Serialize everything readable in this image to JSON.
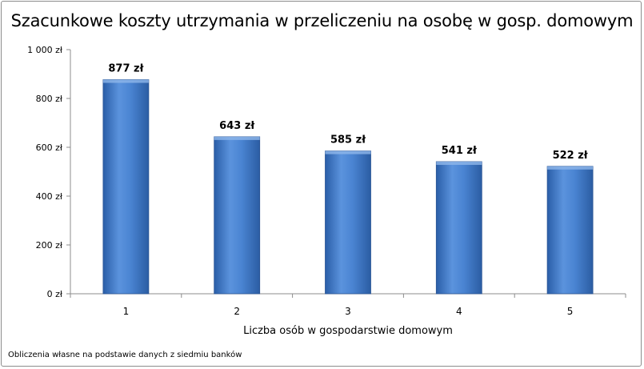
{
  "chart_data": {
    "type": "bar",
    "title": "Szacunkowe koszty utrzymania w przeliczeniu na osobę w gosp. domowym",
    "xlabel": "Liczba osób w gospodarstwie  domowym",
    "ylabel": "",
    "categories": [
      "1",
      "2",
      "3",
      "4",
      "5"
    ],
    "values": [
      877,
      643,
      585,
      541,
      522
    ],
    "data_labels": [
      "877 zł",
      "643 zł",
      "585 zł",
      "541 zł",
      "522 zł"
    ],
    "ylim": [
      0,
      1000
    ],
    "yticks": [
      0,
      200,
      400,
      600,
      800,
      1000
    ],
    "ytick_labels": [
      "0 zł",
      "200 zł",
      "400 zł",
      "600 zł",
      "800 zł",
      "1 000 zł"
    ],
    "grid": false,
    "legend": "none",
    "bar_color": "#3f78c8"
  },
  "footnote": "Obliczenia własne na podstawie danych z siedmiu banków"
}
